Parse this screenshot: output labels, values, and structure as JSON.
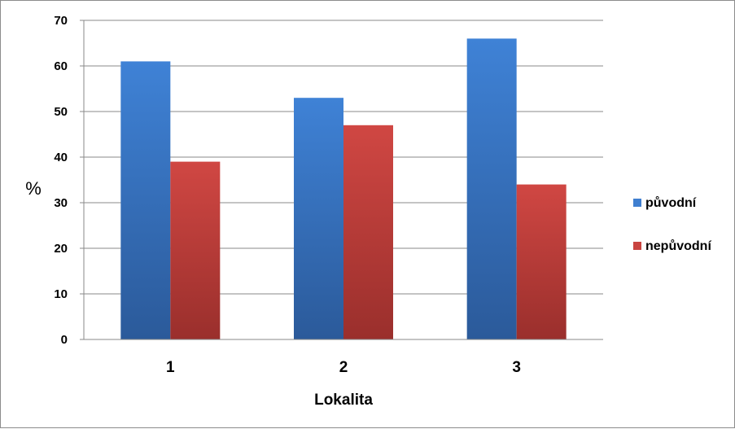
{
  "chart_data": {
    "type": "bar",
    "categories": [
      "1",
      "2",
      "3"
    ],
    "series": [
      {
        "name": "původní",
        "values": [
          61,
          53,
          66
        ],
        "color": "#3f7fd0"
      },
      {
        "name": "nepůvodní",
        "values": [
          39,
          47,
          34
        ],
        "color": "#c94440"
      }
    ],
    "xlabel": "Lokalita",
    "ylabel": "%",
    "ylim": [
      0,
      70
    ],
    "yticks": [
      0,
      10,
      20,
      30,
      40,
      50,
      60,
      70
    ],
    "grid": true,
    "legend_position": "right"
  }
}
